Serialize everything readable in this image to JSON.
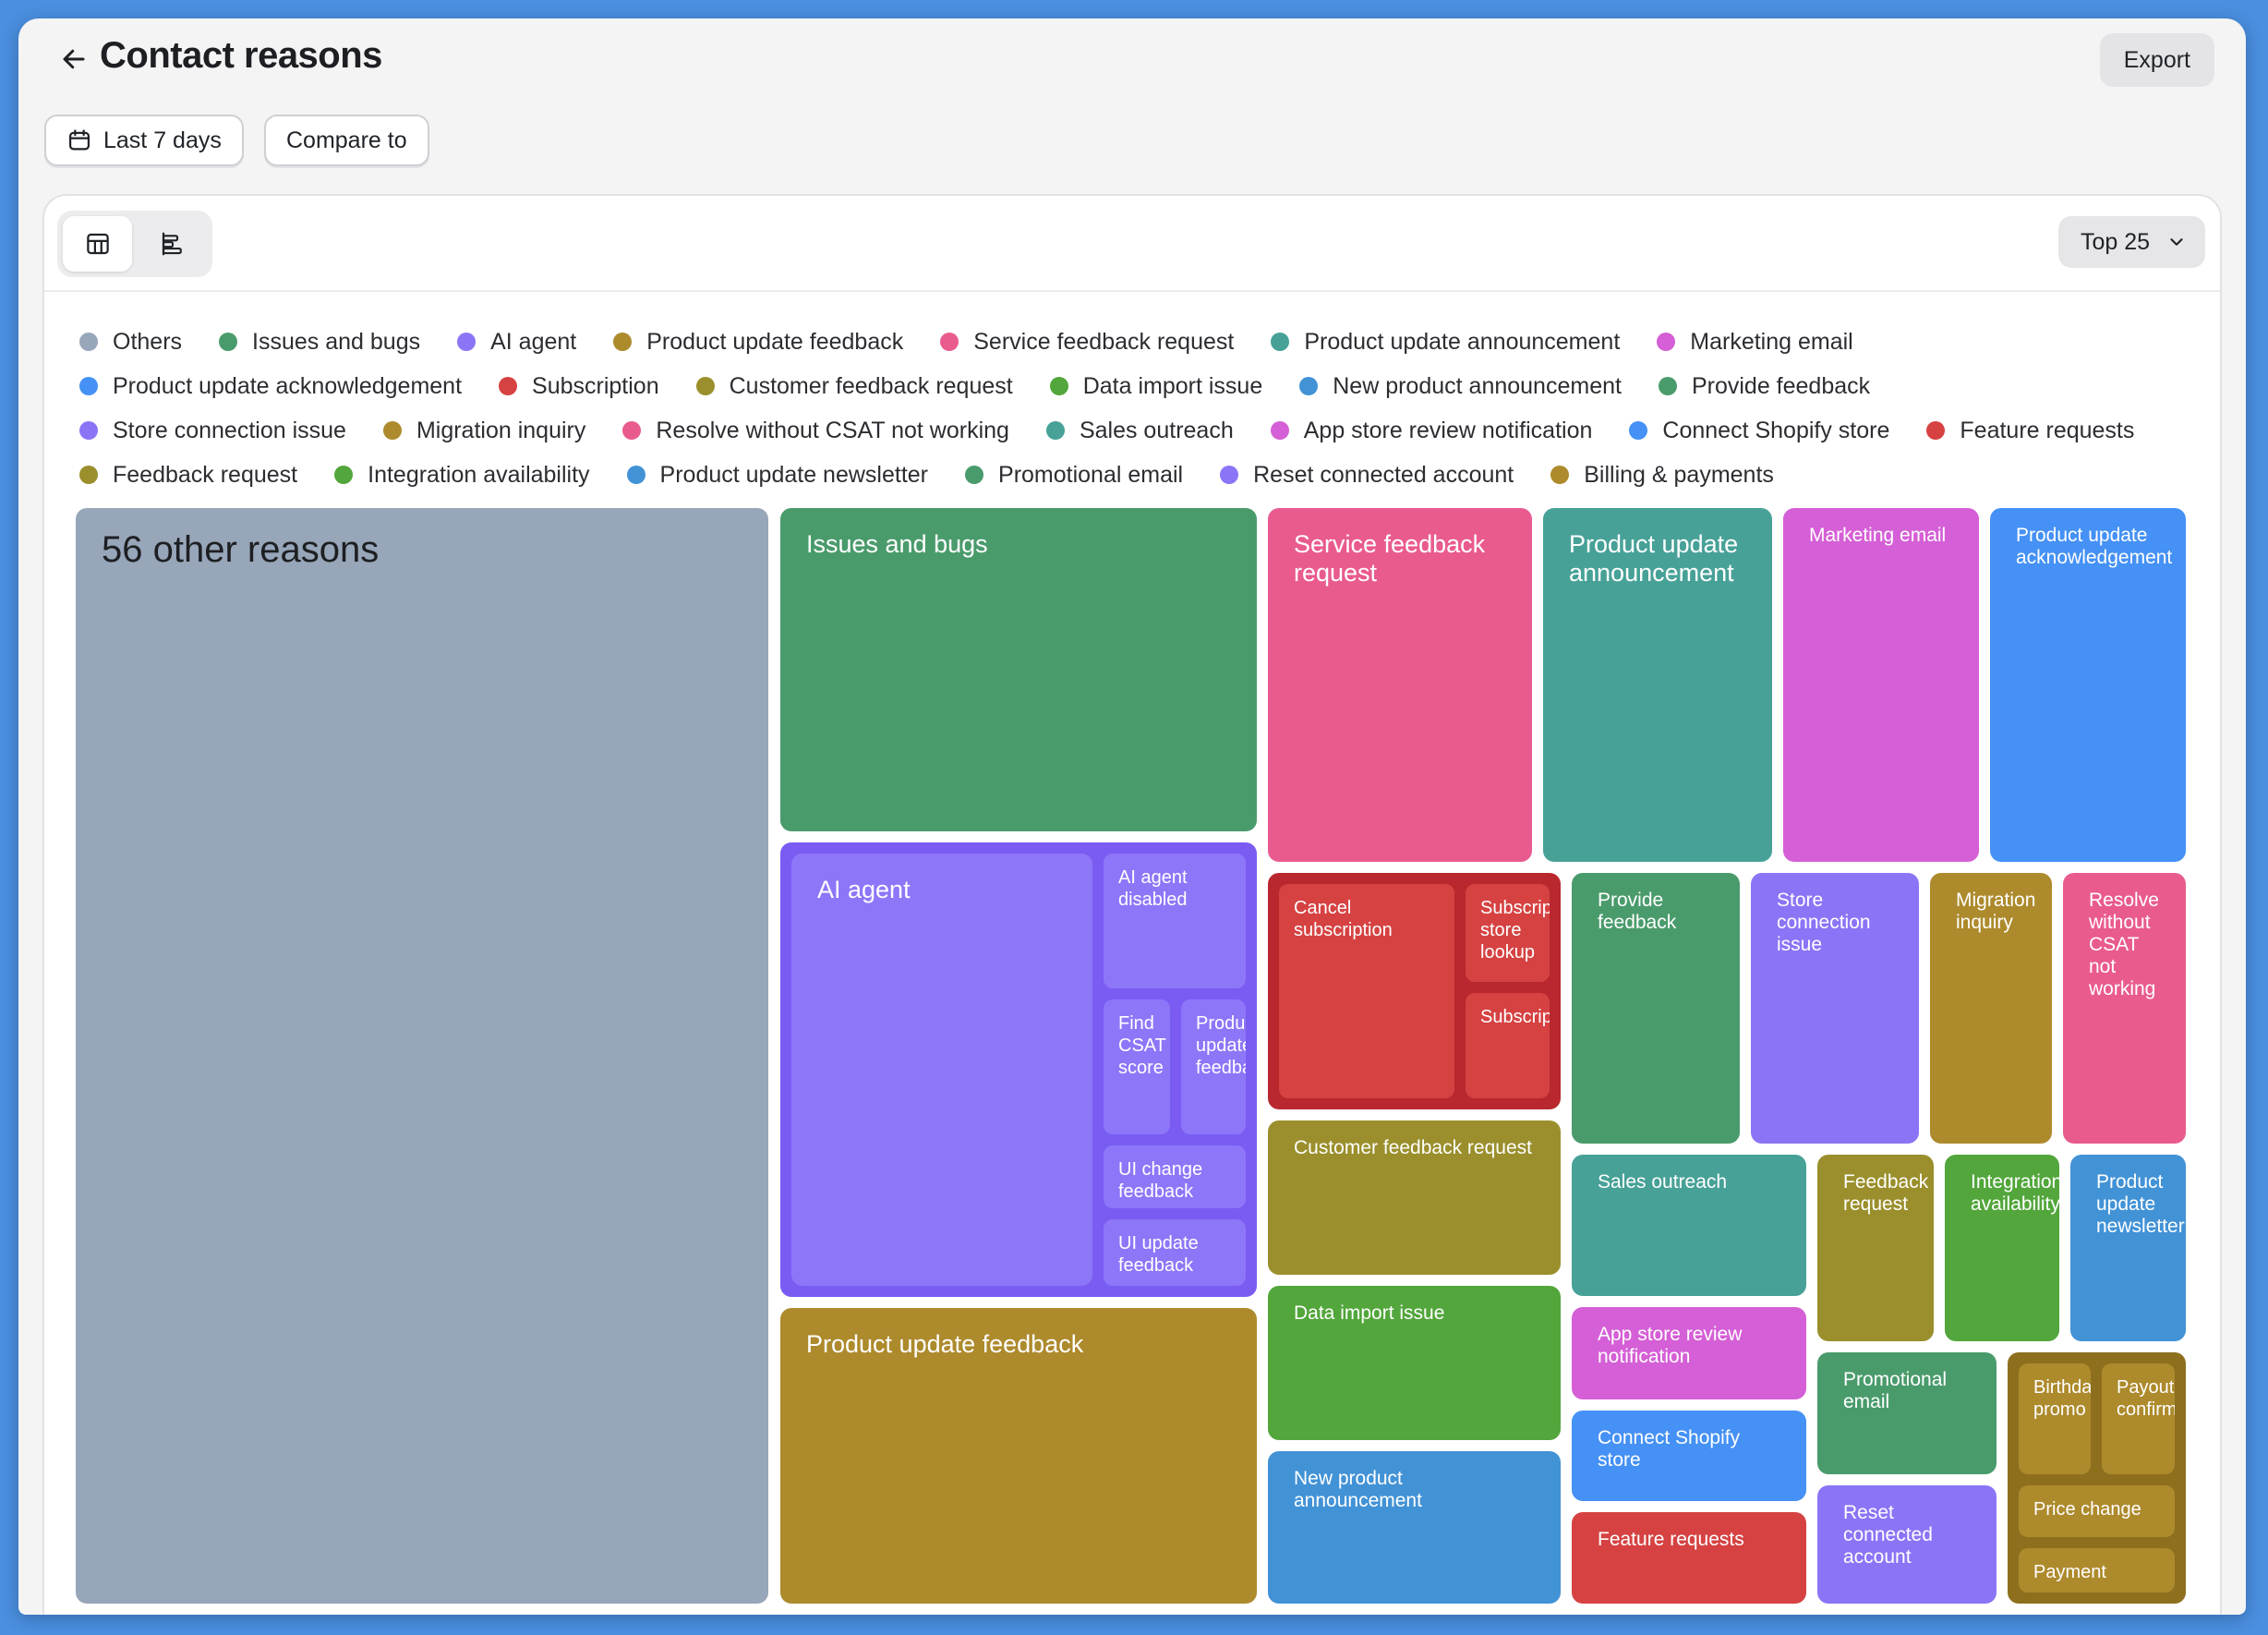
{
  "header": {
    "title": "Contact reasons",
    "export_label": "Export",
    "date_filter_label": "Last 7 days",
    "compare_label": "Compare to"
  },
  "toolbar": {
    "top_select_label": "Top 25",
    "views": [
      "table-view-icon",
      "bar-view-icon"
    ]
  },
  "colors": {
    "others": "#97a6b9",
    "green": "#4a9b6c",
    "violet": "#8c74f6",
    "gold": "#ad8a2c",
    "pink": "#e95b8e",
    "teal": "#47a197",
    "magenta": "#d55fd6",
    "blue": "#4591f5",
    "red": "#d64242",
    "olive": "#9a8f2c",
    "lime": "#52a63b",
    "steel": "#4292d6"
  },
  "legend": [
    {
      "label": "Others",
      "color": "#97a6b9"
    },
    {
      "label": "Issues and bugs",
      "color": "#4a9b6c"
    },
    {
      "label": "AI agent",
      "color": "#8c74f6"
    },
    {
      "label": "Product update feedback",
      "color": "#ad8a2c"
    },
    {
      "label": "Service feedback request",
      "color": "#e95b8e"
    },
    {
      "label": "Product update announcement",
      "color": "#47a197"
    },
    {
      "label": "Marketing email",
      "color": "#d55fd6"
    },
    {
      "label": "Product update acknowledgement",
      "color": "#4591f5"
    },
    {
      "label": "Subscription",
      "color": "#d64242"
    },
    {
      "label": "Customer feedback request",
      "color": "#9a8f2c"
    },
    {
      "label": "Data import issue",
      "color": "#52a63b"
    },
    {
      "label": "New product announcement",
      "color": "#4292d6"
    },
    {
      "label": "Provide feedback",
      "color": "#4a9b6c"
    },
    {
      "label": "Store connection issue",
      "color": "#8c74f6"
    },
    {
      "label": "Migration inquiry",
      "color": "#ad8a2c"
    },
    {
      "label": "Resolve without CSAT not working",
      "color": "#e95b8e"
    },
    {
      "label": "Sales outreach",
      "color": "#47a197"
    },
    {
      "label": "App store review notification",
      "color": "#d55fd6"
    },
    {
      "label": "Connect Shopify store",
      "color": "#4591f5"
    },
    {
      "label": "Feature requests",
      "color": "#d64242"
    },
    {
      "label": "Feedback request",
      "color": "#9a8f2c"
    },
    {
      "label": "Integration availability",
      "color": "#52a63b"
    },
    {
      "label": "Product update newsletter",
      "color": "#4292d6"
    },
    {
      "label": "Promotional email",
      "color": "#4a9b6c"
    },
    {
      "label": "Reset connected account",
      "color": "#8c74f6"
    },
    {
      "label": "Billing & payments",
      "color": "#ad8a2c"
    }
  ],
  "treemap": {
    "others": "56 other reasons",
    "issues_and_bugs": "Issues and bugs",
    "ai_agent": "AI agent",
    "ai_agent_disabled": "AI agent disabled",
    "find_csat_score": "Find CSAT score",
    "product_update_feedback_sub": "Product update feedback",
    "ui_change_feedback": "UI change feedback",
    "ui_update_feedback": "UI update feedback",
    "product_update_feedback": "Product update feedback",
    "service_feedback_request": "Service feedback request",
    "product_update_announcement": "Product update announcement",
    "marketing_email": "Marketing email",
    "product_update_acknowledgement": "Product update acknowledgement",
    "cancel_subscription": "Cancel subscription",
    "subscription_store_lookup": "Subscription store lookup",
    "subscription_other": "Subscription",
    "customer_feedback_request": "Customer feedback request",
    "data_import_issue": "Data import issue",
    "new_product_announcement": "New product announcement",
    "provide_feedback": "Provide feedback",
    "store_connection_issue": "Store connection issue",
    "migration_inquiry": "Migration inquiry",
    "resolve_without_csat": "Resolve without CSAT not working",
    "sales_outreach": "Sales outreach",
    "feedback_request": "Feedback request",
    "integration_availability": "Integration availability",
    "product_update_newsletter": "Product update newsletter",
    "app_store_review_notification": "App store review notification",
    "connect_shopify_store": "Connect Shopify store",
    "feature_requests": "Feature requests",
    "promotional_email": "Promotional email",
    "reset_connected_account": "Reset connected account",
    "birthday_promo": "Birthday promo",
    "payout_confirmation": "Payout confirmation",
    "price_change": "Price change",
    "payment": "Payment"
  }
}
